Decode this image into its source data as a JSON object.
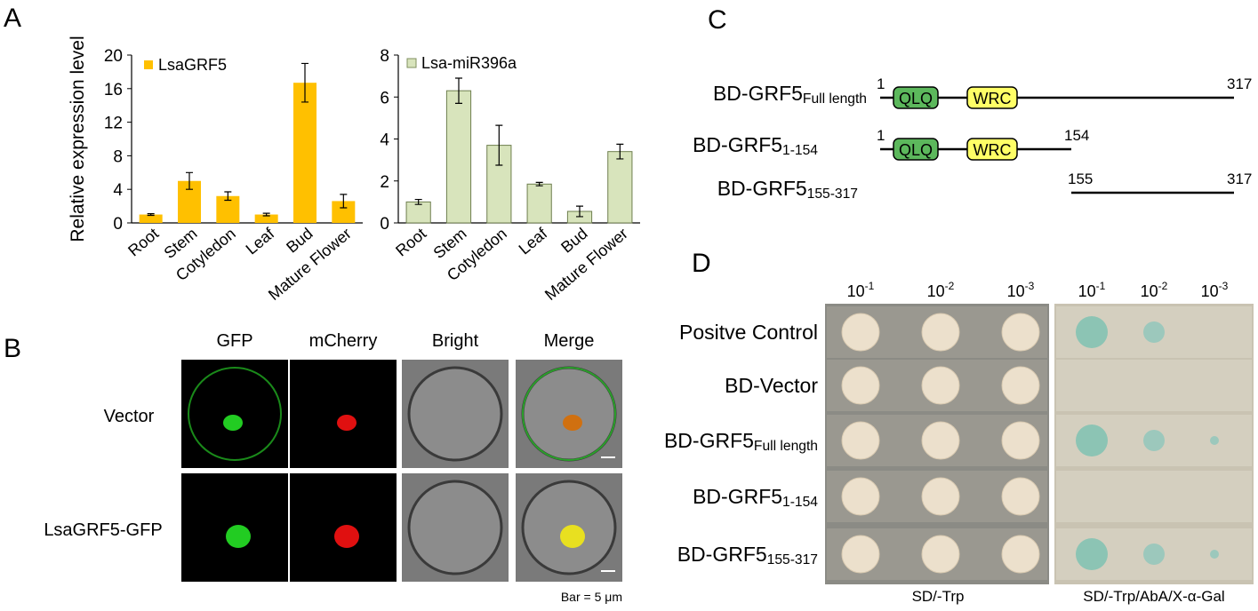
{
  "panels": {
    "a": "A",
    "b": "B",
    "c": "C",
    "d": "D"
  },
  "chart_data": [
    {
      "type": "bar",
      "y_label": "Relative expression level",
      "categories": [
        "Root",
        "Stem",
        "Cotyledon",
        "Leaf",
        "Bud",
        "Mature Flower"
      ],
      "ylim": [
        0,
        20
      ],
      "yticks": [
        0,
        4,
        8,
        12,
        16,
        20
      ],
      "series": [
        {
          "name": "LsaGRF5",
          "color": "#ffc000",
          "values": [
            1.0,
            5.0,
            3.2,
            1.0,
            16.7,
            2.6
          ],
          "errors": [
            0.1,
            1.0,
            0.5,
            0.15,
            2.3,
            0.8
          ]
        }
      ]
    },
    {
      "type": "bar",
      "categories": [
        "Root",
        "Stem",
        "Cotyledon",
        "Leaf",
        "Bud",
        "Mature Flower"
      ],
      "ylim": [
        0,
        8
      ],
      "yticks": [
        0,
        2,
        4,
        6,
        8
      ],
      "series": [
        {
          "name": "Lsa-miR396a",
          "color": "#d8e4bc",
          "values": [
            1.0,
            6.3,
            3.7,
            1.85,
            0.55,
            3.4
          ],
          "errors": [
            0.12,
            0.6,
            0.95,
            0.08,
            0.25,
            0.35
          ]
        }
      ]
    }
  ],
  "localization": {
    "columns": [
      "GFP",
      "mCherry",
      "Bright",
      "Merge"
    ],
    "rows": [
      "Vector",
      "LsaGRF5-GFP"
    ],
    "scale_bar": "Bar = 5 μm"
  },
  "constructs": {
    "rows": [
      {
        "name": "BD-GRF5",
        "subscript": "Full length",
        "start": "1",
        "end": "317",
        "domains": [
          "QLQ",
          "WRC"
        ]
      },
      {
        "name": "BD-GRF5",
        "subscript": "1-154",
        "start": "1",
        "end": "154",
        "domains": [
          "QLQ",
          "WRC"
        ]
      },
      {
        "name": "BD-GRF5",
        "subscript": "155-317",
        "start": "155",
        "end": "317"
      }
    ]
  },
  "yeast": {
    "dilutions": [
      {
        "base": "10",
        "exponent": "-1"
      },
      {
        "base": "10",
        "exponent": "-2"
      },
      {
        "base": "10",
        "exponent": "-3"
      },
      {
        "base": "10",
        "exponent": "-1"
      },
      {
        "base": "10",
        "exponent": "-2"
      },
      {
        "base": "10",
        "exponent": "-3"
      }
    ],
    "rows": [
      {
        "name": "Positve Control"
      },
      {
        "name": "BD-Vector"
      },
      {
        "name": "BD-GRF5",
        "subscript": "Full length"
      },
      {
        "name": "BD-GRF5",
        "subscript": "1-154"
      },
      {
        "name": "BD-GRF5",
        "subscript": "155-317"
      }
    ],
    "media": [
      "SD/-Trp",
      "SD/-Trp/AbA/X-α-Gal"
    ]
  }
}
